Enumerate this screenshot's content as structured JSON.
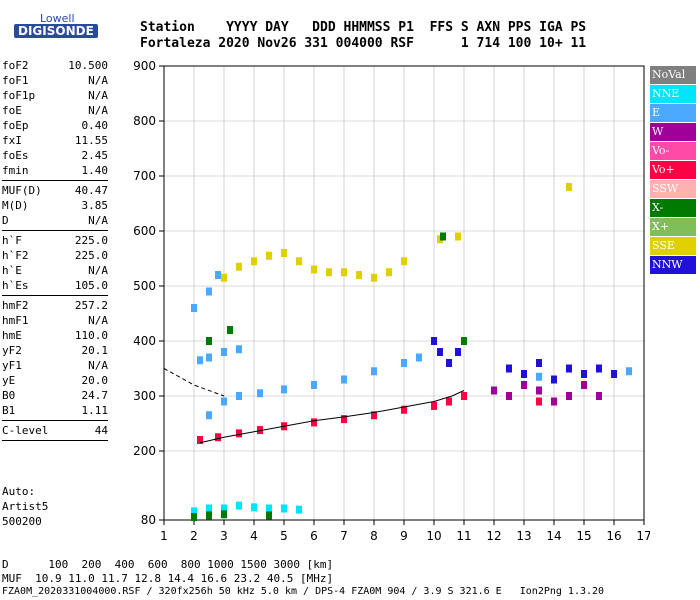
{
  "logo": {
    "line1": "Lowell",
    "line2": "DIGISONDE"
  },
  "header": {
    "row1": "Station    YYYY DAY   DDD HHMMSS P1  FFS S AXN PPS IGA PS",
    "row2": "Fortaleza 2020 Nov26 331 004000 RSF      1 714 100 10+ 11"
  },
  "params": [
    {
      "k": "foF2",
      "v": "10.500"
    },
    {
      "k": "foF1",
      "v": "N/A"
    },
    {
      "k": "foF1p",
      "v": "N/A"
    },
    {
      "k": "foE",
      "v": "N/A"
    },
    {
      "k": "foEp",
      "v": "0.40"
    },
    {
      "k": "fxI",
      "v": "11.55"
    },
    {
      "k": "foEs",
      "v": "2.45"
    },
    {
      "k": "fmin",
      "v": "1.40"
    },
    {
      "k": "sep"
    },
    {
      "k": "MUF(D)",
      "v": "40.47"
    },
    {
      "k": "M(D)",
      "v": "3.85"
    },
    {
      "k": "D",
      "v": "N/A"
    },
    {
      "k": "sep"
    },
    {
      "k": "h`F",
      "v": "225.0"
    },
    {
      "k": "h`F2",
      "v": "225.0"
    },
    {
      "k": "h`E",
      "v": "N/A"
    },
    {
      "k": "h`Es",
      "v": "105.0"
    },
    {
      "k": "sep"
    },
    {
      "k": "hmF2",
      "v": "257.2"
    },
    {
      "k": "hmF1",
      "v": "N/A"
    },
    {
      "k": "hmE",
      "v": "110.0"
    },
    {
      "k": "yF2",
      "v": "20.1"
    },
    {
      "k": "yF1",
      "v": "N/A"
    },
    {
      "k": "yE",
      "v": "20.0"
    },
    {
      "k": "B0",
      "v": "24.7"
    },
    {
      "k": "B1",
      "v": "1.11"
    },
    {
      "k": "sep"
    },
    {
      "k": "C-level",
      "v": "44"
    },
    {
      "k": "sep"
    }
  ],
  "auto": [
    "Auto:",
    "Artist5",
    "500200"
  ],
  "legend": [
    {
      "label": "NoVal",
      "bg": "#7f7f7f",
      "fg": "#ffffff"
    },
    {
      "label": "NNE",
      "bg": "#00e5ff",
      "fg": "#ffffff"
    },
    {
      "label": "E",
      "bg": "#4aa8ff",
      "fg": "#ffffff"
    },
    {
      "label": "W",
      "bg": "#a0009a",
      "fg": "#ffffff"
    },
    {
      "label": "Vo-",
      "bg": "#ff4aa8",
      "fg": "#ffffff"
    },
    {
      "label": "Vo+",
      "bg": "#ff0044",
      "fg": "#ffffff"
    },
    {
      "label": "SSW",
      "bg": "#ffb0b0",
      "fg": "#ffffff"
    },
    {
      "label": "X-",
      "bg": "#007a00",
      "fg": "#ffffff"
    },
    {
      "label": "X+",
      "bg": "#7fbf5a",
      "fg": "#ffffff"
    },
    {
      "label": "SSE",
      "bg": "#e0d000",
      "fg": "#ffffff"
    },
    {
      "label": "NNW",
      "bg": "#2010d8",
      "fg": "#ffffff"
    }
  ],
  "chart_data": {
    "type": "scatter",
    "xlim": [
      1,
      17
    ],
    "ylim": [
      80,
      900
    ],
    "x_ticks": [
      "1",
      "2",
      "3",
      "4",
      "5",
      "6",
      "7",
      "8",
      "9",
      "10",
      "11",
      "12",
      "13",
      "14",
      "15",
      "16",
      "17"
    ],
    "y_ticks": [
      "80",
      "200",
      "300",
      "400",
      "500",
      "600",
      "700",
      "800",
      "900"
    ],
    "series": [
      {
        "color": "#ff0044",
        "points": [
          [
            2.2,
            220
          ],
          [
            2.8,
            225
          ],
          [
            3.5,
            232
          ],
          [
            4.2,
            238
          ],
          [
            5,
            245
          ],
          [
            6,
            252
          ],
          [
            7,
            258
          ],
          [
            8,
            265
          ],
          [
            9,
            275
          ],
          [
            10,
            282
          ],
          [
            10.5,
            290
          ],
          [
            11,
            300
          ],
          [
            12.5,
            300
          ],
          [
            13.5,
            290
          ],
          [
            14.5,
            300
          ]
        ]
      },
      {
        "color": "#4aa8ff",
        "points": [
          [
            2.5,
            265
          ],
          [
            3,
            290
          ],
          [
            3.5,
            300
          ],
          [
            4.2,
            305
          ],
          [
            5,
            312
          ],
          [
            6,
            320
          ],
          [
            7,
            330
          ],
          [
            8,
            345
          ],
          [
            9,
            360
          ],
          [
            9.5,
            370
          ],
          [
            13,
            340
          ],
          [
            13.5,
            335
          ],
          [
            14,
            330
          ],
          [
            15,
            340
          ],
          [
            16,
            340
          ],
          [
            16.5,
            345
          ],
          [
            2.2,
            365
          ],
          [
            2.5,
            370
          ],
          [
            3,
            380
          ],
          [
            3.5,
            385
          ],
          [
            2,
            460
          ],
          [
            2.5,
            490
          ],
          [
            2.8,
            520
          ]
        ]
      },
      {
        "color": "#2010d8",
        "points": [
          [
            10,
            400
          ],
          [
            10.2,
            380
          ],
          [
            10.5,
            360
          ],
          [
            10.8,
            380
          ],
          [
            12.5,
            350
          ],
          [
            13,
            340
          ],
          [
            13.5,
            360
          ],
          [
            14,
            330
          ],
          [
            14.5,
            350
          ],
          [
            15,
            340
          ],
          [
            15.5,
            350
          ],
          [
            16,
            340
          ]
        ]
      },
      {
        "color": "#a0009a",
        "points": [
          [
            12,
            310
          ],
          [
            12.5,
            300
          ],
          [
            13,
            320
          ],
          [
            13.5,
            310
          ],
          [
            14,
            290
          ],
          [
            14.5,
            300
          ],
          [
            15,
            320
          ],
          [
            15.5,
            300
          ]
        ]
      },
      {
        "color": "#e0d000",
        "points": [
          [
            3,
            515
          ],
          [
            3.5,
            535
          ],
          [
            4,
            545
          ],
          [
            4.5,
            555
          ],
          [
            5,
            560
          ],
          [
            5.5,
            545
          ],
          [
            6,
            530
          ],
          [
            6.5,
            525
          ],
          [
            7,
            525
          ],
          [
            7.5,
            520
          ],
          [
            8,
            515
          ],
          [
            8.5,
            525
          ],
          [
            9,
            545
          ],
          [
            10.2,
            585
          ],
          [
            10.8,
            590
          ],
          [
            14.5,
            680
          ]
        ]
      },
      {
        "color": "#00e5ff",
        "points": [
          [
            2,
            95
          ],
          [
            2.5,
            100
          ],
          [
            3,
            100
          ],
          [
            3.5,
            105
          ],
          [
            4,
            102
          ],
          [
            4.5,
            100
          ],
          [
            5,
            100
          ],
          [
            5.5,
            98
          ]
        ]
      },
      {
        "color": "#007a00",
        "points": [
          [
            2,
            85
          ],
          [
            2.5,
            88
          ],
          [
            3,
            90
          ],
          [
            4.5,
            88
          ],
          [
            2.5,
            400
          ],
          [
            3.2,
            420
          ],
          [
            10.3,
            590
          ],
          [
            11,
            400
          ]
        ]
      }
    ],
    "trace": [
      [
        2.2,
        215
      ],
      [
        3,
        225
      ],
      [
        4,
        235
      ],
      [
        5,
        245
      ],
      [
        6,
        255
      ],
      [
        7,
        262
      ],
      [
        8,
        270
      ],
      [
        9,
        280
      ],
      [
        10,
        290
      ],
      [
        10.6,
        300
      ],
      [
        11,
        310
      ]
    ],
    "trace2": [
      [
        1,
        350
      ],
      [
        2,
        320
      ],
      [
        3,
        300
      ]
    ]
  },
  "footer": {
    "line1": "D      100  200  400  600  800 1000 1500 3000 [km]",
    "line2": "MUF  10.9 11.0 11.7 12.8 14.4 16.6 23.2 40.5 [MHz]",
    "line3": "FZA0M_2020331004000.RSF / 320fx256h 50 kHz 5.0 km / DPS-4 FZA0M 904 / 3.9 S 321.6 E   Ion2Png 1.3.20"
  }
}
